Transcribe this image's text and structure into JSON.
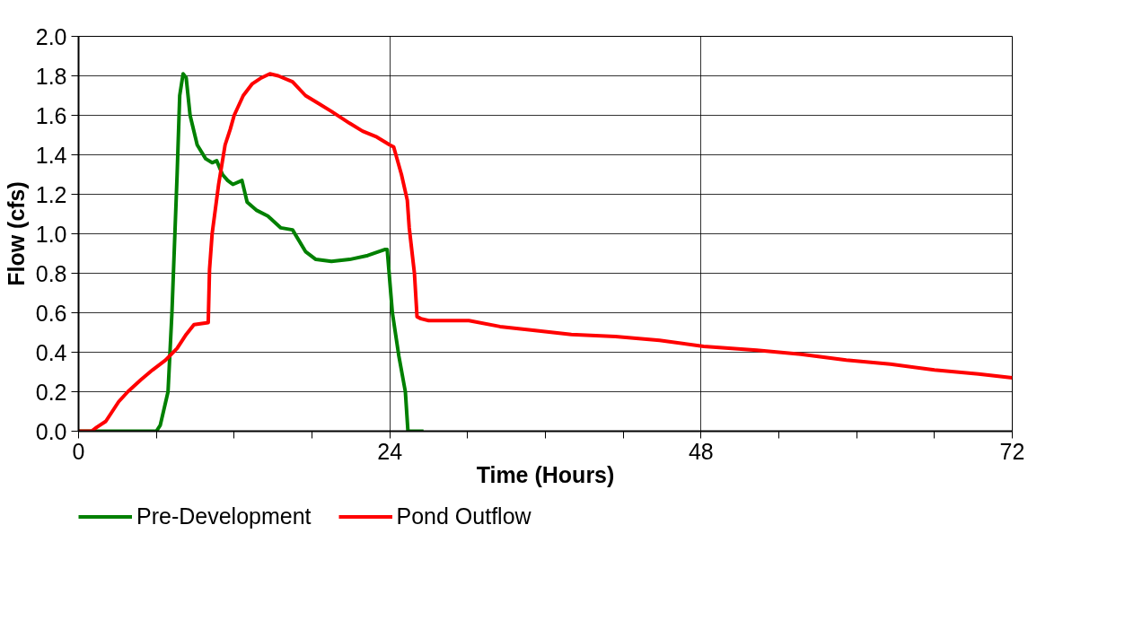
{
  "chart_data": {
    "type": "line",
    "xlabel": "Time (Hours)",
    "ylabel": "Flow (cfs)",
    "xlim": [
      0,
      72
    ],
    "ylim": [
      0,
      2.0
    ],
    "xticks": [
      0,
      {
        "value": 6,
        "label": null
      },
      {
        "value": 12,
        "label": null
      },
      {
        "value": 18,
        "label": null
      },
      24,
      {
        "value": 30,
        "label": null
      },
      {
        "value": 36,
        "label": null
      },
      {
        "value": 42,
        "label": null
      },
      48,
      {
        "value": 54,
        "label": null
      },
      {
        "value": 60,
        "label": null
      },
      {
        "value": 66,
        "label": null
      },
      72
    ],
    "yticks": [
      {
        "value": 0,
        "label": "0.0"
      },
      {
        "value": 0.2,
        "label": "0.2"
      },
      {
        "value": 0.4,
        "label": "0.4"
      },
      {
        "value": 0.6,
        "label": "0.6"
      },
      {
        "value": 0.8,
        "label": "0.8"
      },
      {
        "value": 1.0,
        "label": "1.0"
      },
      {
        "value": 1.2,
        "label": "1.2"
      },
      {
        "value": 1.4,
        "label": "1.4"
      },
      {
        "value": 1.6,
        "label": "1.6"
      },
      {
        "value": 1.8,
        "label": "1.8"
      },
      {
        "value": 2.0,
        "label": "2.0"
      }
    ],
    "grid": true,
    "legend": "bottom left",
    "marker": "none",
    "line_style": "solid",
    "series": [
      {
        "name": "Pre-Development",
        "color": "#008000",
        "x": [
          0,
          6,
          6.3,
          6.9,
          7.2,
          7.6,
          7.8,
          8.06,
          8.3,
          8.6,
          9.15,
          9.8,
          10.3,
          10.65,
          11.1,
          11.5,
          11.9,
          12.6,
          13,
          13.7,
          14.6,
          15.6,
          16.5,
          17.5,
          18.3,
          19.5,
          20.9,
          22.3,
          23.6,
          23.8,
          24.2,
          24.7,
          25.2,
          25.4,
          26.6
        ],
        "values": [
          0,
          0,
          0.03,
          0.2,
          0.6,
          1.3,
          1.7,
          1.81,
          1.79,
          1.6,
          1.45,
          1.38,
          1.36,
          1.37,
          1.3,
          1.27,
          1.25,
          1.27,
          1.16,
          1.12,
          1.09,
          1.03,
          1.02,
          0.91,
          0.87,
          0.86,
          0.87,
          0.89,
          0.92,
          0.92,
          0.6,
          0.38,
          0.2,
          0,
          0
        ]
      },
      {
        "name": "Pond Outflow",
        "color": "#ff0000",
        "x": [
          0,
          1,
          1.4,
          2.1,
          2.6,
          3.1,
          3.8,
          4.8,
          5.7,
          6.7,
          7.6,
          8.3,
          8.9,
          10.0,
          10.1,
          10.3,
          10.8,
          11.3,
          11.7,
          12.0,
          12.7,
          13.4,
          14.1,
          14.75,
          15.4,
          16.5,
          17.5,
          18.5,
          19.5,
          20.9,
          21.9,
          23,
          24,
          24.3,
          24.9,
          25.35,
          25.5,
          25.9,
          26.1,
          26.4,
          27.0,
          30.1,
          32.5,
          35.2,
          38.0,
          41.4,
          44.8,
          48.2,
          52.3,
          55.7,
          59.2,
          62.6,
          66,
          69.4,
          72
        ],
        "values": [
          0,
          0,
          0.02,
          0.05,
          0.1,
          0.15,
          0.2,
          0.26,
          0.31,
          0.36,
          0.42,
          0.49,
          0.54,
          0.55,
          0.82,
          1.0,
          1.25,
          1.45,
          1.53,
          1.6,
          1.7,
          1.76,
          1.79,
          1.81,
          1.8,
          1.77,
          1.7,
          1.66,
          1.62,
          1.56,
          1.52,
          1.49,
          1.45,
          1.44,
          1.3,
          1.17,
          1.03,
          0.8,
          0.58,
          0.57,
          0.56,
          0.56,
          0.53,
          0.51,
          0.49,
          0.48,
          0.46,
          0.43,
          0.41,
          0.39,
          0.36,
          0.34,
          0.31,
          0.29,
          0.27
        ]
      }
    ]
  }
}
